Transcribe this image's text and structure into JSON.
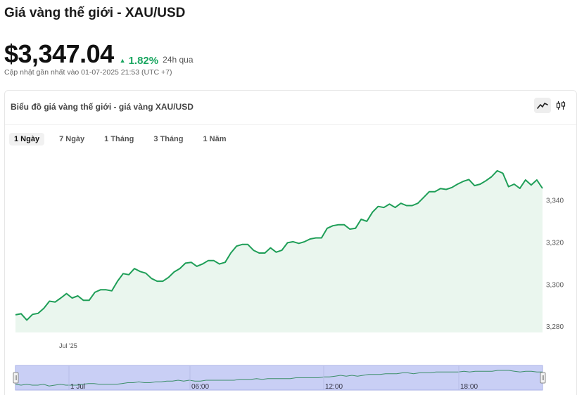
{
  "header": {
    "title": "Giá vàng thế giới - XAU/USD",
    "price": "$3,347.04",
    "change": "1.82%",
    "period": "24h qua",
    "updated": "Cập nhật gần nhất vào 01-07-2025 21:53 (UTC +7)"
  },
  "card": {
    "title": "Biểu đồ giá vàng thế giới - giá vàng XAU/USD",
    "chart_type_icons": [
      "line-chart-icon",
      "candlestick-icon"
    ]
  },
  "ranges": [
    {
      "label": "1 Ngày",
      "active": true
    },
    {
      "label": "7 Ngày",
      "active": false
    },
    {
      "label": "1 Tháng",
      "active": false
    },
    {
      "label": "3 Tháng",
      "active": false
    },
    {
      "label": "1 Năm",
      "active": false
    }
  ],
  "colors": {
    "line": "#1e9e57",
    "area": "#eaf6ee",
    "navigator": "#c9cff5",
    "accent_up": "#1aa660"
  },
  "chart_data": {
    "type": "area",
    "title": "",
    "xlabel": "",
    "ylabel": "",
    "ylim": [
      3277,
      3365
    ],
    "y_ticks": [
      3280,
      3300,
      3320,
      3340
    ],
    "y_tick_labels": [
      "3,280",
      "3,300",
      "3,320",
      "3,340"
    ],
    "x_tick_labels": [
      "Jul '25"
    ],
    "navigator_labels": [
      "1 Jul",
      "06:00",
      "12:00",
      "18:00"
    ],
    "grid": false,
    "series": [
      {
        "values": [
          3285.4,
          3285.9,
          3282.9,
          3285.6,
          3286.1,
          3288.5,
          3291.9,
          3291.5,
          3293.4,
          3295.5,
          3293.4,
          3294.4,
          3292.3,
          3292.3,
          3296.1,
          3297.3,
          3297.3,
          3296.8,
          3301.4,
          3305.0,
          3304.5,
          3307.4,
          3306.0,
          3305.2,
          3302.7,
          3301.4,
          3301.4,
          3303.2,
          3305.8,
          3307.4,
          3310.0,
          3310.4,
          3308.5,
          3309.6,
          3311.2,
          3311.2,
          3309.6,
          3310.4,
          3314.8,
          3318.1,
          3318.9,
          3318.9,
          3316.1,
          3314.8,
          3314.8,
          3317.3,
          3315.2,
          3316.1,
          3319.7,
          3320.2,
          3319.4,
          3320.2,
          3321.5,
          3322.0,
          3322.0,
          3326.6,
          3327.8,
          3328.3,
          3328.3,
          3326.2,
          3326.6,
          3330.9,
          3329.9,
          3334.3,
          3337.0,
          3336.5,
          3338.1,
          3336.5,
          3338.5,
          3337.4,
          3337.4,
          3338.5,
          3341.2,
          3344.0,
          3344.0,
          3345.5,
          3345.1,
          3346.0,
          3347.6,
          3348.9,
          3349.8,
          3346.9,
          3347.6,
          3349.2,
          3351.1,
          3354.0,
          3352.8,
          3346.4,
          3347.6,
          3345.6,
          3349.6,
          3347.2,
          3349.6,
          3345.6
        ]
      }
    ],
    "navigator_series": [
      7,
      6,
      7,
      6,
      6,
      7,
      5,
      6,
      7,
      6,
      6,
      6,
      7,
      8,
      8,
      7,
      7,
      7,
      7,
      8,
      9,
      9,
      10,
      9,
      9,
      10,
      10,
      11,
      11,
      12,
      11,
      12,
      11,
      11,
      12,
      12,
      12,
      12,
      12,
      12,
      13,
      13,
      13,
      14,
      13,
      14,
      14,
      14,
      14,
      14,
      15,
      15,
      15,
      15,
      15,
      16,
      16,
      17,
      18,
      17,
      18,
      17,
      18,
      19,
      19,
      19,
      20,
      20,
      20,
      21,
      21,
      20,
      21,
      21,
      21,
      22,
      22,
      22,
      22,
      22,
      23,
      22,
      23,
      23,
      23,
      23,
      24,
      24,
      24,
      23,
      22,
      23,
      23,
      22,
      22
    ]
  }
}
